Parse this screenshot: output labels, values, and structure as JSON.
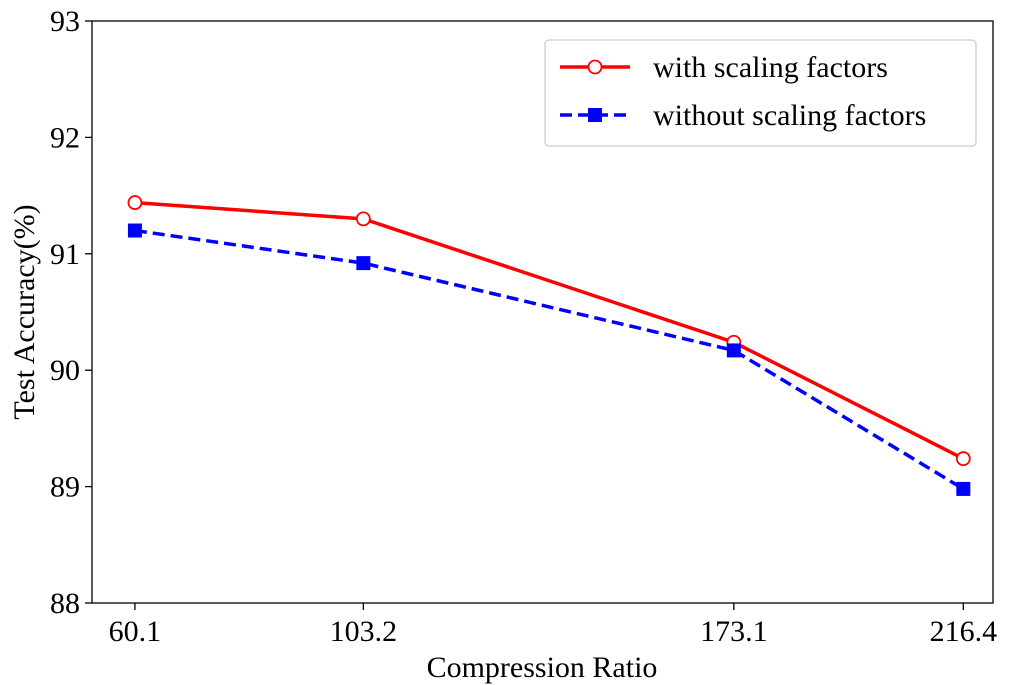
{
  "chart_data": {
    "type": "line",
    "title": "",
    "xlabel": "Compression Ratio",
    "ylabel": "Test Accuracy(%)",
    "x": [
      60.1,
      103.2,
      173.1,
      216.4
    ],
    "x_tick_labels": [
      "60.1",
      "103.2",
      "173.1",
      "216.4"
    ],
    "xlim": [
      52,
      222
    ],
    "ylim": [
      88,
      93
    ],
    "y_ticks": [
      88,
      89,
      90,
      91,
      92,
      93
    ],
    "grid": false,
    "legend_position": "top-right",
    "series": [
      {
        "name": "with scaling factors",
        "values": [
          91.44,
          91.3,
          90.24,
          89.24
        ],
        "color": "#ff0000",
        "line_style": "solid",
        "marker": "hollow-circle"
      },
      {
        "name": "without scaling factors",
        "values": [
          91.2,
          90.92,
          90.17,
          88.98
        ],
        "color": "#0000ff",
        "line_style": "dashed",
        "marker": "filled-square"
      }
    ]
  }
}
